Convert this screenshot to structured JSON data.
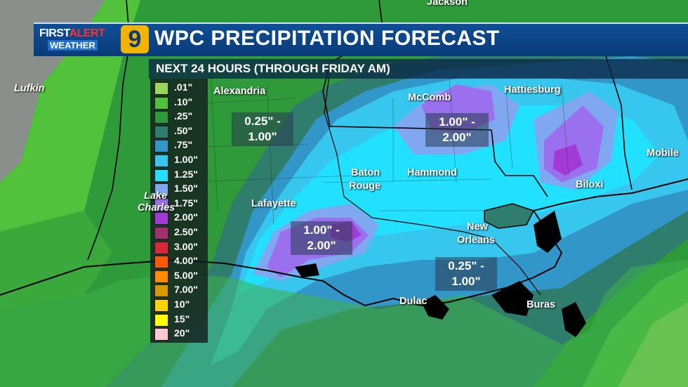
{
  "header": {
    "logo_first": "FIRST",
    "logo_alert": "ALERT",
    "logo_weather": "WEATHER",
    "logo_number": "9",
    "title": "WPC PRECIPITATION FORECAST",
    "subtitle": "NEXT 24 HOURS (THROUGH FRIDAY AM)"
  },
  "legend": [
    {
      "label": ".01\"",
      "color": "#9ad65a"
    },
    {
      "label": ".10\"",
      "color": "#52c13c"
    },
    {
      "label": ".25\"",
      "color": "#2e9a3a"
    },
    {
      "label": ".50\"",
      "color": "#2f7d6d"
    },
    {
      "label": ".75\"",
      "color": "#3396c8"
    },
    {
      "label": "1.00\"",
      "color": "#36c6ee"
    },
    {
      "label": "1.25\"",
      "color": "#22e0ff"
    },
    {
      "label": "1.50\"",
      "color": "#7fa8f0"
    },
    {
      "label": "1.75\"",
      "color": "#9a70ee"
    },
    {
      "label": "2.00\"",
      "color": "#a23ad6"
    },
    {
      "label": "2.50\"",
      "color": "#a0306e"
    },
    {
      "label": "3.00\"",
      "color": "#d8283a"
    },
    {
      "label": "4.00\"",
      "color": "#ff5a00"
    },
    {
      "label": "5.00\"",
      "color": "#ff8c00"
    },
    {
      "label": "7.00\"",
      "color": "#d69a00"
    },
    {
      "label": "10\"",
      "color": "#ffd400"
    },
    {
      "label": "15\"",
      "color": "#ffff00"
    },
    {
      "label": "20\"",
      "color": "#ffc8d2"
    }
  ],
  "cities": [
    {
      "name": "Jackson"
    },
    {
      "name": "Lufkin"
    },
    {
      "name": "Alexandria"
    },
    {
      "name": "McComb"
    },
    {
      "name": "Hattiesburg"
    },
    {
      "name": "Baton"
    },
    {
      "name": "Rouge"
    },
    {
      "name": "Hammond"
    },
    {
      "name": "Mobile"
    },
    {
      "name": "Biloxi"
    },
    {
      "name": "Lafayette"
    },
    {
      "name": "New"
    },
    {
      "name": "Orleans"
    },
    {
      "name": "Dulac"
    },
    {
      "name": "Buras"
    },
    {
      "name": "Lake"
    },
    {
      "name": "Charles"
    }
  ],
  "ranges": [
    {
      "line1": "0.25\" -",
      "line2": "1.00\""
    },
    {
      "line1": "1.00\" -",
      "line2": "2.00\""
    },
    {
      "line1": "1.00\" -",
      "line2": "2.00\""
    },
    {
      "line1": "0.25\" -",
      "line2": "1.00\""
    }
  ],
  "colors": {
    "banner_blue": "#0f4f96",
    "logo_gold": "#f2b400",
    "alert_red": "#ff3030",
    "gulf_green": "#3fb24a"
  }
}
